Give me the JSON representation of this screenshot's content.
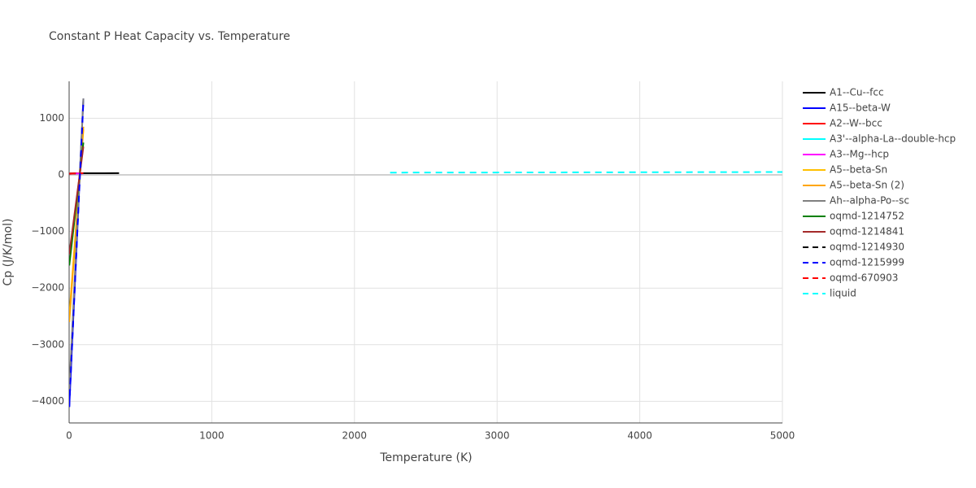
{
  "chart_data": {
    "type": "line",
    "title": "Constant P Heat Capacity vs. Temperature",
    "x_label": "Temperature (K)",
    "y_label": "Cp (J/K/mol)",
    "xlim": [
      0,
      5000
    ],
    "ylim": [
      -4382,
      1652
    ],
    "xticks": [
      0,
      1000,
      2000,
      3000,
      4000,
      5000
    ],
    "yticks": [
      {
        "value": -4000,
        "label": "−4000"
      },
      {
        "value": -3000,
        "label": "−3000"
      },
      {
        "value": -2000,
        "label": "−2000"
      },
      {
        "value": -1000,
        "label": "−1000"
      },
      0,
      1000
    ],
    "grid": true,
    "series": [
      {
        "name": "A1--Cu--fcc",
        "color": "#000000",
        "dash": false,
        "x": [
          5,
          100,
          200,
          350
        ],
        "values": [
          25,
          28,
          29,
          30
        ]
      },
      {
        "name": "A15--beta-W",
        "color": "#0000ff",
        "dash": false,
        "x": [
          1,
          25,
          50,
          75,
          100
        ],
        "values": [
          -4100,
          -2750,
          -1400,
          0,
          1350
        ]
      },
      {
        "name": "A2--W--bcc",
        "color": "#ff0000",
        "dash": false,
        "x": [
          1,
          50,
          80
        ],
        "values": [
          24,
          27,
          30
        ]
      },
      {
        "name": "A3'--alpha-La--double-hcp",
        "color": "#00ffff",
        "dash": false,
        "x": [
          1,
          100
        ],
        "values": [
          20,
          25
        ]
      },
      {
        "name": "A3--Mg--hcp",
        "color": "#ff00ff",
        "dash": false,
        "x": [
          1,
          100
        ],
        "values": [
          20,
          25
        ]
      },
      {
        "name": "A5--beta-Sn",
        "color": "#ffc000",
        "dash": false,
        "x": [
          1,
          100
        ],
        "values": [
          -2500,
          800
        ]
      },
      {
        "name": "A5--beta-Sn (2)",
        "color": "#ffa500",
        "dash": false,
        "x": [
          1,
          100
        ],
        "values": [
          -2600,
          850
        ]
      },
      {
        "name": "Ah--alpha-Po--sc",
        "color": "#808080",
        "dash": false,
        "x": [
          1,
          100
        ],
        "values": [
          -3800,
          1350
        ]
      },
      {
        "name": "oqmd-1214752",
        "color": "#008000",
        "dash": false,
        "x": [
          1,
          100
        ],
        "values": [
          -1600,
          570
        ]
      },
      {
        "name": "oqmd-1214841",
        "color": "#a52a2a",
        "dash": false,
        "x": [
          1,
          100
        ],
        "values": [
          -1400,
          500
        ]
      },
      {
        "name": "oqmd-1214930",
        "color": "#000000",
        "dash": true,
        "x": [
          1,
          100
        ],
        "values": [
          20,
          28
        ]
      },
      {
        "name": "oqmd-1215999",
        "color": "#0000ff",
        "dash": true,
        "x": [
          1,
          100
        ],
        "values": [
          -4100,
          1300
        ]
      },
      {
        "name": "oqmd-670903",
        "color": "#ff0000",
        "dash": true,
        "x": [
          1,
          100
        ],
        "values": [
          20,
          30
        ]
      },
      {
        "name": "liquid",
        "color": "#00ffff",
        "dash": true,
        "x": [
          2250,
          3000,
          4000,
          5000
        ],
        "values": [
          40,
          42,
          46,
          50
        ]
      }
    ]
  }
}
